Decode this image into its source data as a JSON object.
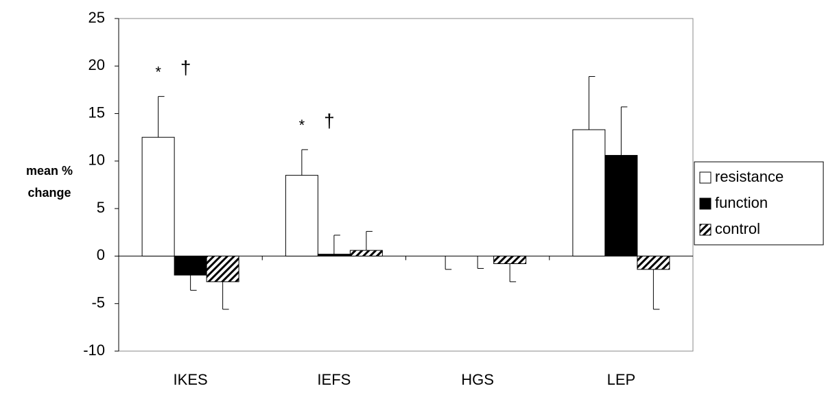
{
  "chart_data": {
    "type": "bar",
    "ylabel": [
      "mean %",
      "change"
    ],
    "categories": [
      "IKES",
      "IEFS",
      "HGS",
      "LEP"
    ],
    "series": [
      {
        "name": "resistance",
        "color": "#ffffff",
        "values": [
          12.5,
          8.5,
          0,
          13.3
        ],
        "errors": [
          4.3,
          2.7,
          1.4,
          5.6
        ]
      },
      {
        "name": "function",
        "color": "#000000",
        "values": [
          -2.0,
          0.2,
          0,
          10.6
        ],
        "errors": [
          1.6,
          2.0,
          1.3,
          5.1
        ]
      },
      {
        "name": "control",
        "color": "#000000",
        "pattern": "hatch",
        "values": [
          -2.7,
          0.6,
          -0.8,
          -1.4
        ],
        "errors": [
          2.9,
          2.0,
          1.9,
          4.2
        ]
      }
    ],
    "annotations": [
      {
        "category": 0,
        "texts": [
          "*",
          "†"
        ]
      },
      {
        "category": 1,
        "texts": [
          "*",
          "†"
        ]
      }
    ],
    "ylim": [
      -10,
      25
    ],
    "yticks": [
      -10,
      -5,
      0,
      5,
      10,
      15,
      20,
      25
    ],
    "legend": "right"
  }
}
